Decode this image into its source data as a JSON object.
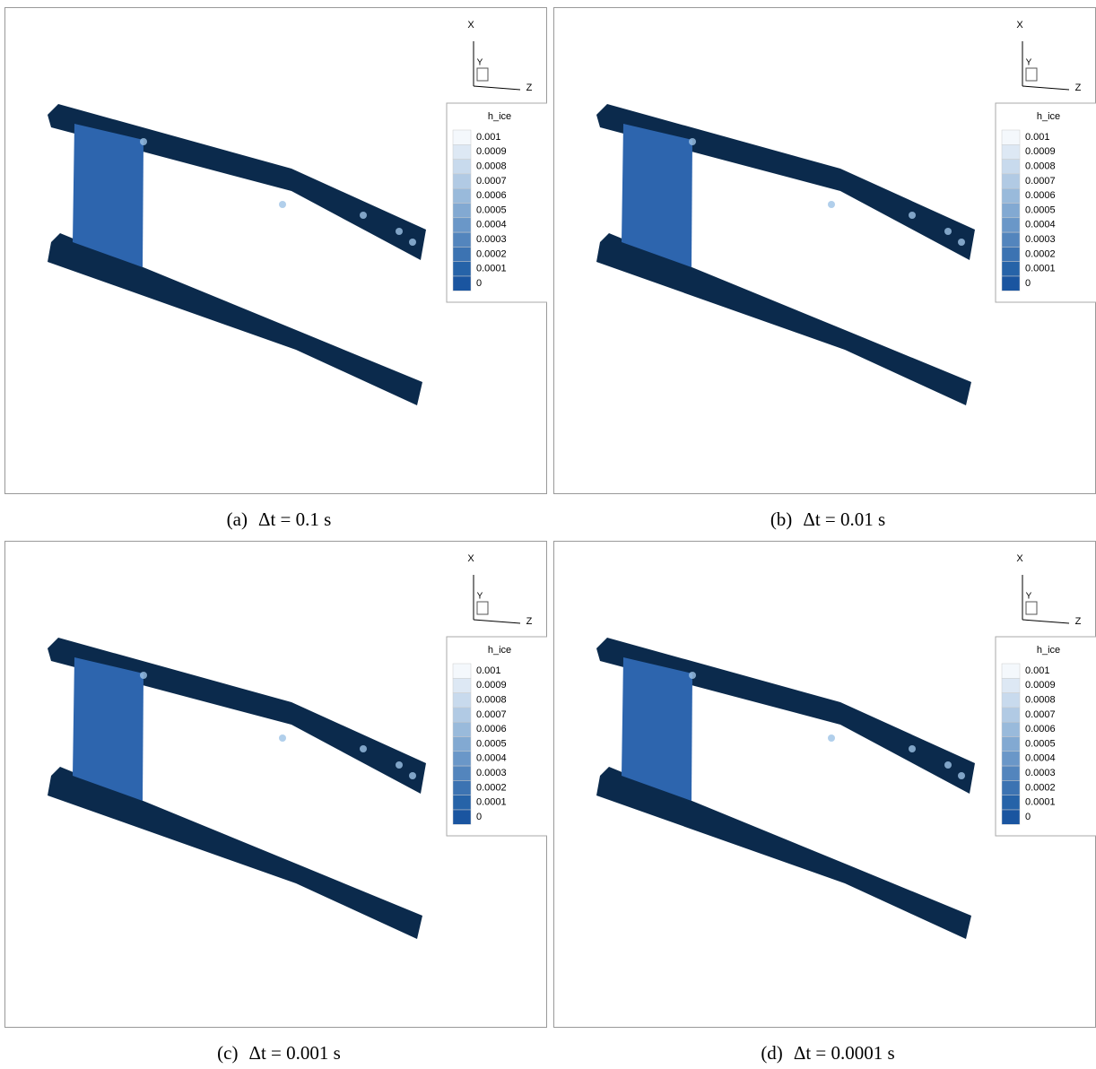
{
  "panels": [
    {
      "caption_label": "(a)",
      "caption": "Δt = 0.1 s",
      "axes": {
        "x": "X",
        "y": "Y",
        "z": "Z"
      },
      "legend": {
        "title": "h_ice",
        "levels": [
          "0.001",
          "0.0009",
          "0.0008",
          "0.0007",
          "0.0006",
          "0.0005",
          "0.0004",
          "0.0003",
          "0.0002",
          "0.0001",
          "0"
        ]
      }
    },
    {
      "caption_label": "(b)",
      "caption": "Δt = 0.01 s",
      "axes": {
        "x": "X",
        "y": "Y",
        "z": "Z"
      },
      "legend": {
        "title": "h_ice",
        "levels": [
          "0.001",
          "0.0009",
          "0.0008",
          "0.0007",
          "0.0006",
          "0.0005",
          "0.0004",
          "0.0003",
          "0.0002",
          "0.0001",
          "0"
        ]
      }
    },
    {
      "caption_label": "(c)",
      "caption": "Δt = 0.001 s",
      "axes": {
        "x": "X",
        "y": "Y",
        "z": "Z"
      },
      "legend": {
        "title": "h_ice",
        "levels": [
          "0.001",
          "0.0009",
          "0.0008",
          "0.0007",
          "0.0006",
          "0.0005",
          "0.0004",
          "0.0003",
          "0.0002",
          "0.0001",
          "0"
        ]
      }
    },
    {
      "caption_label": "(d)",
      "caption": "Δt = 0.0001 s",
      "axes": {
        "x": "X",
        "y": "Y",
        "z": "Z"
      },
      "legend": {
        "title": "h_ice",
        "levels": [
          "0.001",
          "0.0009",
          "0.0008",
          "0.0007",
          "0.0006",
          "0.0005",
          "0.0004",
          "0.0003",
          "0.0002",
          "0.0001",
          "0"
        ]
      }
    }
  ]
}
